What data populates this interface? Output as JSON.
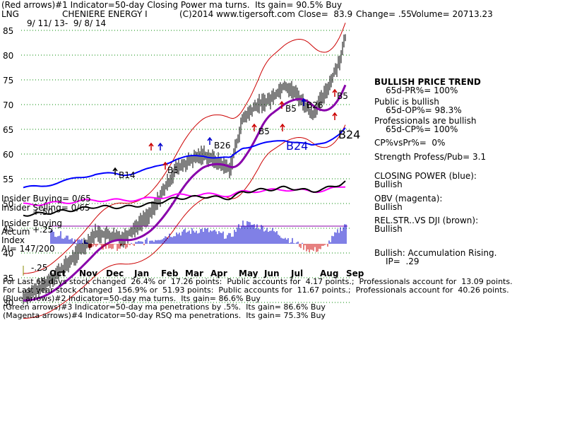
{
  "header": {
    "line1": "(Red arrows)#1 Indicator=50-day Closing Power ma turns.  Its gain= 90.5% Buy",
    "symbol": "LNG",
    "company": "CHENIERE ENERGY I",
    "copyright": "(C)2014 www.tigersoft.com",
    "close": "Close=  83.9",
    "change": "Change= .55",
    "volume": "Volume= 20713.23",
    "date_range": "9/ 11/ 13-  9/ 8/ 14"
  },
  "right_panel": [
    {
      "text": "BULLISH PRICE TREND",
      "bold": true
    },
    {
      "text": "65d-PR%= 100%",
      "bold": false
    },
    {
      "text": "Public is bullish",
      "bold": false
    },
    {
      "text": "65d-OP%= 98.3%",
      "bold": false
    },
    {
      "text": "Professionals are bullish",
      "bold": false
    },
    {
      "text": "65d-CP%= 100%",
      "bold": false
    },
    {
      "text": "CP%vsPr%=  0%",
      "bold": false
    },
    {
      "text": "Strength Profess/Pub= 3.1",
      "bold": false
    },
    {
      "text": "CLOSING POWER (blue):",
      "bold": false
    },
    {
      "text": "Bullish",
      "bold": false
    },
    {
      "text": "OBV (magenta):",
      "bold": false
    },
    {
      "text": "Bullish",
      "bold": false
    },
    {
      "text": "REL.STR..VS DJI (brown):",
      "bold": false
    },
    {
      "text": "Bullish",
      "bold": false
    },
    {
      "text": "Bullish: Accumulation Rising.",
      "bold": false
    },
    {
      "text": "IP=  .29",
      "bold": false
    }
  ],
  "left_labels": {
    "insider_buying_1": "Insider Buying= 0/65",
    "insider_selling": "Insider Selling= 0/65",
    "insider_buying_2": "Insider Buying",
    "accum": "Accum",
    "index": "Index",
    "ai": "AI= 147/200",
    "plus25": "+.25",
    "plus50": "+.50",
    "minus25": "-.25"
  },
  "bottom_lines": [
    "For Last 65 days stock changed  26.4% or  17.26 points:  Public accounts for  4.17 points.;  Professionals account for  13.09 points.",
    "For Last year stock changed  156.9% or  51.93 points:  Public accounts for  11.67 points.;  Professionals account for  40.26 points.",
    "(Blue arrows)#2 Indicator=50-day ma turns.  Its gain= 86.6% Buy",
    "(Green arrows)#3 Indicator=50-day ma penetrations by .5%.  Its gain= 86.6% Buy",
    "(Magenta arrows)#4 Indicator=50-day RSQ ma penetrations.  Its gain= 75.3% Buy"
  ],
  "signals": [
    {
      "label": "B14",
      "color": "#000000"
    },
    {
      "label": "B5",
      "color": "#000000"
    },
    {
      "label": "B26",
      "color": "#000000"
    },
    {
      "label": "B5",
      "color": "#000000"
    },
    {
      "label": "B5",
      "color": "#000000"
    },
    {
      "label": "B26",
      "color": "#000000"
    },
    {
      "label": "B5",
      "color": "#000000"
    },
    {
      "label": "B24",
      "color": "#0000cc"
    },
    {
      "label": "B24",
      "color": "#000000"
    }
  ],
  "colors": {
    "price_bars": "#000000",
    "bands": "#cc0000",
    "ma50": "#8800aa",
    "closing_power": "#0000ff",
    "obv": "#ff00ff",
    "rel_str": "#000000",
    "accum_bars": "#0000cc",
    "accum_neg": "#cc0000"
  },
  "chart_data": {
    "type": "line",
    "title": "CHENIERE ENERGY I",
    "xlabel": "",
    "ylabel": "",
    "ylim": [
      25,
      87
    ],
    "y_ticks": [
      30,
      35,
      40,
      45,
      50,
      55,
      60,
      65,
      70,
      75,
      80,
      85
    ],
    "x_ticks": [
      "Oct",
      "Nov",
      "Dec",
      "Jan",
      "Feb",
      "Mar",
      "Apr",
      "May",
      "Jun",
      "Jul",
      "Aug",
      "Sep"
    ],
    "grid": true,
    "x": [
      "2013-09-11",
      "2013-10-01",
      "2013-11-01",
      "2013-12-01",
      "2014-01-01",
      "2014-02-01",
      "2014-03-01",
      "2014-04-01",
      "2014-05-01",
      "2014-05-15",
      "2014-06-01",
      "2014-06-15",
      "2014-07-01",
      "2014-07-15",
      "2014-08-01",
      "2014-08-15",
      "2014-09-01",
      "2014-09-08"
    ],
    "series": [
      {
        "values": [
          31,
          33,
          38,
          44,
          43,
          48,
          57,
          60,
          57,
          67,
          70,
          71,
          74,
          72,
          68,
          72,
          79,
          84
        ]
      }
    ],
    "accumulation_index": {
      "ylim": [
        -0.25,
        0.5
      ],
      "values": [
        0.15,
        0.2,
        0.1,
        -0.05,
        -0.05,
        0.05,
        0.15,
        0.2,
        0.1,
        0.3,
        0.25,
        0.2,
        0.1,
        0.0,
        -0.1,
        -0.05,
        0.2,
        0.29
      ]
    }
  }
}
